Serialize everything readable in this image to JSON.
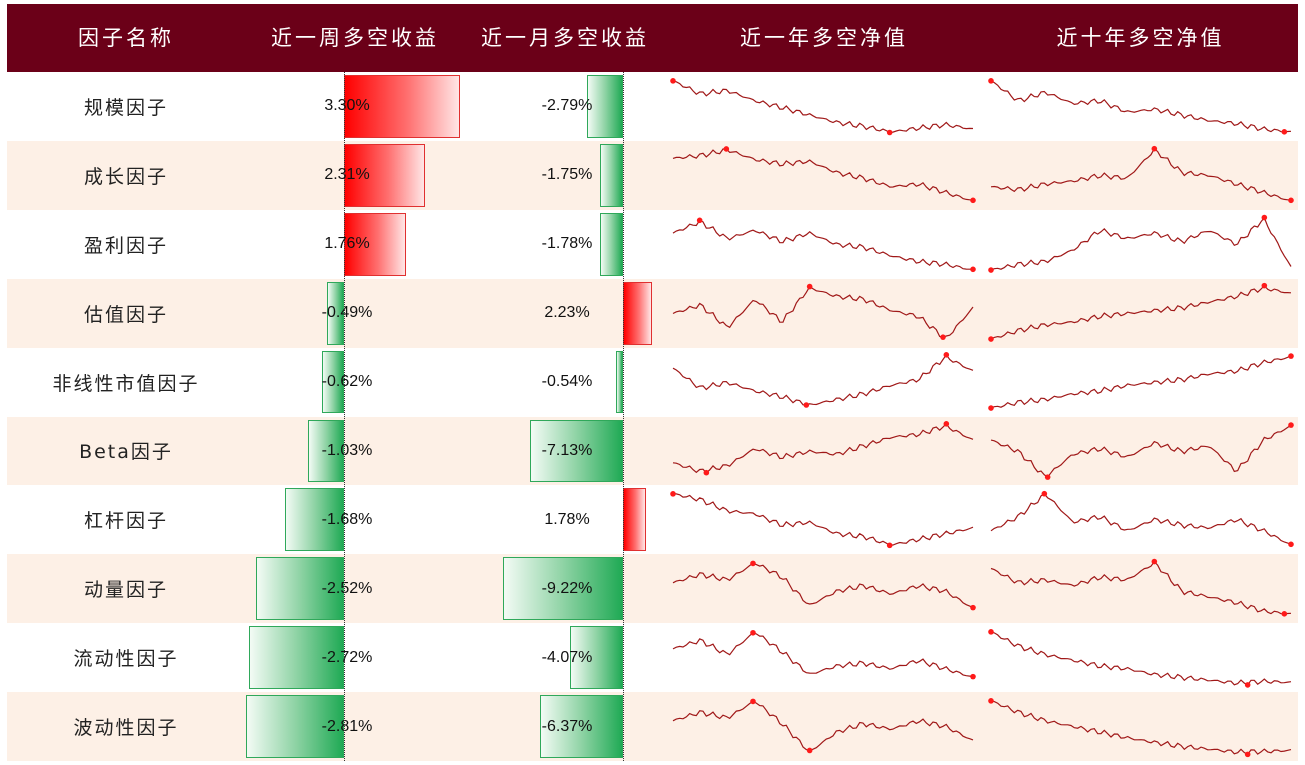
{
  "table": {
    "headers": [
      "因子名称",
      "近一周多空收益",
      "近一月多空收益",
      "近一年多空净值",
      "近十年多空净值"
    ]
  },
  "colors": {
    "header_bg": "#6b0018",
    "positive": "#ff0000",
    "negative": "#20aa55",
    "line": "#a01818",
    "marker": "#ff1a1a",
    "alt_row": "#fdf0e6"
  },
  "chart_data": {
    "type": "table",
    "columns": [
      "因子名称",
      "近一周多空收益",
      "近一月多空收益",
      "近一年多空净值",
      "近十年多空净值"
    ],
    "rows": [
      {
        "factor": "规模因子",
        "week": 3.3,
        "month": -2.79,
        "week_label": "3.30%",
        "month_label": "-2.79%"
      },
      {
        "factor": "成长因子",
        "week": 2.31,
        "month": -1.75,
        "week_label": "2.31%",
        "month_label": "-1.75%"
      },
      {
        "factor": "盈利因子",
        "week": 1.76,
        "month": -1.78,
        "week_label": "1.76%",
        "month_label": "-1.78%"
      },
      {
        "factor": "估值因子",
        "week": -0.49,
        "month": 2.23,
        "week_label": "-0.49%",
        "month_label": "2.23%"
      },
      {
        "factor": "非线性市值因子",
        "week": -0.62,
        "month": -0.54,
        "week_label": "-0.62%",
        "month_label": "-0.54%"
      },
      {
        "factor": "Beta因子",
        "week": -1.03,
        "month": -7.13,
        "week_label": "-1.03%",
        "month_label": "-7.13%"
      },
      {
        "factor": "杠杆因子",
        "week": -1.68,
        "month": 1.78,
        "week_label": "-1.68%",
        "month_label": "1.78%"
      },
      {
        "factor": "动量因子",
        "week": -2.52,
        "month": -9.22,
        "week_label": "-2.52%",
        "month_label": "-9.22%"
      },
      {
        "factor": "流动性因子",
        "week": -2.72,
        "month": -4.07,
        "week_label": "-2.72%",
        "month_label": "-4.07%"
      },
      {
        "factor": "波动性因子",
        "week": -2.81,
        "month": -6.37,
        "week_label": "-2.81%",
        "month_label": "-6.37%"
      }
    ],
    "sparklines": {
      "year": [
        [
          0.95,
          0.72,
          0.78,
          0.6,
          0.48,
          0.35,
          0.22,
          0.15,
          0.05,
          0.12,
          0.18,
          0.1
        ],
        [
          0.8,
          0.85,
          0.95,
          0.78,
          0.7,
          0.75,
          0.55,
          0.45,
          0.3,
          0.35,
          0.2,
          0.05
        ],
        [
          0.7,
          0.9,
          0.6,
          0.75,
          0.55,
          0.7,
          0.5,
          0.45,
          0.3,
          0.2,
          0.15,
          0.05
        ],
        [
          0.5,
          0.65,
          0.25,
          0.75,
          0.35,
          0.95,
          0.8,
          0.75,
          0.55,
          0.45,
          0.05,
          0.6
        ],
        [
          0.75,
          0.4,
          0.5,
          0.35,
          0.25,
          0.1,
          0.2,
          0.3,
          0.45,
          0.55,
          0.95,
          0.7
        ],
        [
          0.3,
          0.15,
          0.25,
          0.55,
          0.4,
          0.5,
          0.45,
          0.6,
          0.75,
          0.8,
          0.95,
          0.7
        ],
        [
          0.95,
          0.85,
          0.65,
          0.6,
          0.4,
          0.45,
          0.25,
          0.2,
          0.05,
          0.15,
          0.25,
          0.35
        ],
        [
          0.6,
          0.75,
          0.65,
          0.95,
          0.7,
          0.2,
          0.45,
          0.55,
          0.4,
          0.55,
          0.45,
          0.15
        ],
        [
          0.65,
          0.8,
          0.55,
          0.95,
          0.6,
          0.2,
          0.35,
          0.4,
          0.3,
          0.45,
          0.3,
          0.15
        ],
        [
          0.6,
          0.75,
          0.65,
          0.95,
          0.55,
          0.05,
          0.4,
          0.55,
          0.45,
          0.6,
          0.5,
          0.25
        ]
      ],
      "decade": [
        [
          0.95,
          0.6,
          0.75,
          0.55,
          0.6,
          0.4,
          0.45,
          0.35,
          0.25,
          0.2,
          0.1,
          0.05
        ],
        [
          0.3,
          0.25,
          0.35,
          0.4,
          0.5,
          0.45,
          0.95,
          0.55,
          0.5,
          0.35,
          0.2,
          0.05
        ],
        [
          0.05,
          0.15,
          0.2,
          0.4,
          0.75,
          0.6,
          0.7,
          0.55,
          0.75,
          0.5,
          0.95,
          0.1
        ],
        [
          0.05,
          0.2,
          0.3,
          0.35,
          0.45,
          0.5,
          0.55,
          0.6,
          0.7,
          0.8,
          0.95,
          0.85
        ],
        [
          0.05,
          0.15,
          0.2,
          0.3,
          0.35,
          0.45,
          0.5,
          0.55,
          0.65,
          0.7,
          0.85,
          0.95
        ],
        [
          0.7,
          0.5,
          0.05,
          0.45,
          0.55,
          0.4,
          0.65,
          0.5,
          0.6,
          0.15,
          0.7,
          0.95
        ],
        [
          0.3,
          0.55,
          0.95,
          0.45,
          0.55,
          0.3,
          0.5,
          0.4,
          0.35,
          0.5,
          0.3,
          0.05
        ],
        [
          0.85,
          0.6,
          0.65,
          0.55,
          0.7,
          0.65,
          0.95,
          0.45,
          0.35,
          0.25,
          0.1,
          0.05
        ],
        [
          0.95,
          0.7,
          0.55,
          0.45,
          0.35,
          0.3,
          0.2,
          0.15,
          0.1,
          0.05,
          0.08,
          0.06
        ],
        [
          0.95,
          0.75,
          0.6,
          0.5,
          0.4,
          0.3,
          0.22,
          0.15,
          0.1,
          0.05,
          0.06,
          0.08
        ]
      ]
    }
  }
}
